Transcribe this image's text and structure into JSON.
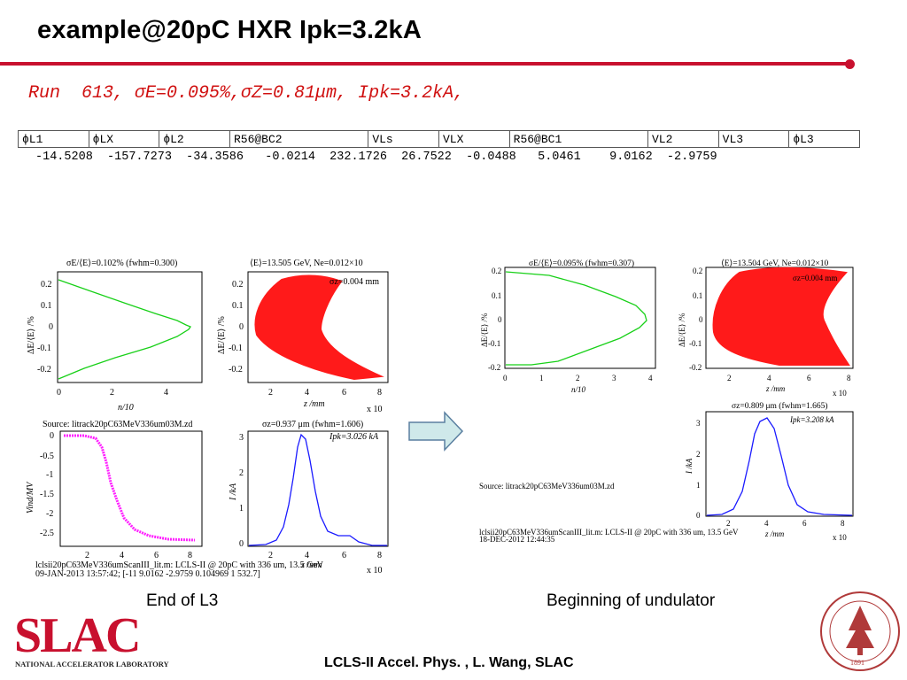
{
  "slide": {
    "title": "example@20pC HXR  Ipk=3.2kA",
    "run_line": "Run  613, σE=0.095%,σZ=0.81μm, Ipk=3.2kA,",
    "footer": "LCLS-II Accel. Phys. , L. Wang, SLAC",
    "caption_left": "End of L3",
    "caption_right": "Beginning of undulator",
    "accent_color": "#c8102e"
  },
  "param_table": {
    "headers": [
      "ϕL1",
      "ϕLX",
      "ϕL2",
      "R56@BC2",
      "VLs",
      "VLX",
      "R56@BC1",
      "VL2",
      "VL3",
      "ϕL3"
    ],
    "values_line": "-14.5208  -157.7273  -34.3586   -0.0214  232.1726  26.7522  -0.0488   5.0461    9.0162  -2.9759"
  },
  "logos": {
    "slac": "SLAC",
    "slac_sub": "NATIONAL ACCELERATOR LABORATORY",
    "stanford_year": "1891"
  },
  "plots_left": {
    "energy_profile": {
      "title": "σE/⟨E⟩=0.102% (fwhm=0.300)",
      "xlabel": "n/10",
      "ylabel": "ΔE/⟨E⟩ /%",
      "xticks": [
        "0",
        "2",
        "4"
      ],
      "yticks": [
        "0.2",
        "0.1",
        "0",
        "-0.1",
        "-0.2"
      ]
    },
    "phase_space": {
      "title": "⟨E⟩=13.505 GeV, Ne=0.012×10",
      "note": "σz=0.004 mm",
      "xlabel": "z /mm",
      "xscale": "x 10",
      "ylabel": "ΔE/⟨E⟩ /%",
      "xticks": [
        "2",
        "4",
        "6",
        "8"
      ],
      "yticks": [
        "0.2",
        "0.1",
        "0",
        "-0.1",
        "-0.2"
      ]
    },
    "wake_voltage": {
      "title": "Source: litrack20pC63MeV336um03M.zd",
      "ylabel": "Vind/MV",
      "xticks": [
        "2",
        "4",
        "6",
        "8"
      ],
      "yticks": [
        "0",
        "-0.5",
        "-1",
        "-1.5",
        "-2",
        "-2.5"
      ]
    },
    "current": {
      "title": "σz=0.937 μm (fwhm=1.606)",
      "ipk": "Ipk=3.026 kA",
      "ylabel": "I /kA",
      "xlabel": "z /mm",
      "xscale": "x 10",
      "xticks": [
        "2",
        "4",
        "6",
        "8"
      ],
      "yticks": [
        "3",
        "2",
        "1",
        "0"
      ]
    },
    "stamp1": "lclsii20pC63MeV336umScanIII_lit.m:  LCLS-II @ 20pC with 336 um, 13.5 GeV",
    "stamp2": "09-JAN-2013 13:57:42;  [-11 9.0162 -2.9759 0.104969 1 532.7]"
  },
  "plots_right": {
    "energy_profile": {
      "title": "σE/⟨E⟩=0.095% (fwhm=0.307)",
      "xlabel": "n/10",
      "ylabel": "ΔE/⟨E⟩ /%",
      "xticks": [
        "0",
        "1",
        "2",
        "3",
        "4"
      ],
      "yticks": [
        "0.2",
        "0.1",
        "0",
        "-0.1",
        "-0.2"
      ]
    },
    "phase_space": {
      "title": "⟨E⟩=13.504 GeV, Ne=0.012×10",
      "note": "σz=0.004 mm",
      "xlabel": "z /mm",
      "xscale": "x 10",
      "ylabel": "ΔE/⟨E⟩ /%",
      "xticks": [
        "2",
        "4",
        "6",
        "8"
      ],
      "yticks": [
        "0.2",
        "0.1",
        "0",
        "-0.1",
        "-0.2"
      ]
    },
    "source": "Source: litrack20pC63MeV336um03M.zd",
    "current": {
      "title": "σz=0.809 μm (fwhm=1.665)",
      "ipk": "Ipk=3.208 kA",
      "ylabel": "I /kA",
      "xlabel": "z /mm",
      "xscale": "x 10",
      "xticks": [
        "2",
        "4",
        "6",
        "8"
      ],
      "yticks": [
        "3",
        "2",
        "1",
        "0"
      ]
    },
    "stamp1": "lclsii20pC63MeV336umScanIII_lit.m:  LCLS-II @ 20pC with 336 um, 13.5 GeV",
    "stamp2": "18-DEC-2012 12:44:35"
  }
}
